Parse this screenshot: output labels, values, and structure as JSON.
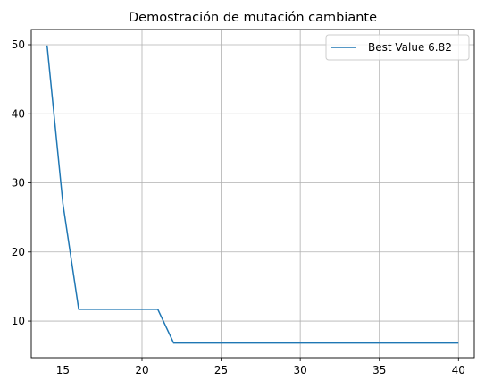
{
  "chart_data": {
    "type": "line",
    "title": "Demostración de mutación cambiante",
    "xlabel": "",
    "ylabel": "",
    "xlim": [
      13,
      41
    ],
    "ylim": [
      4.7,
      52.2
    ],
    "xticks": [
      15,
      20,
      25,
      30,
      35,
      40
    ],
    "yticks": [
      10,
      20,
      30,
      40,
      50
    ],
    "grid": true,
    "legend_position": "top-right",
    "series": [
      {
        "name": "Best Value 6.82",
        "color": "#1f77b4",
        "x": [
          14,
          15,
          16,
          17,
          18,
          19,
          20,
          21,
          22,
          23,
          24,
          25,
          26,
          27,
          28,
          29,
          30,
          31,
          32,
          33,
          34,
          35,
          36,
          37,
          38,
          39,
          40
        ],
        "y": [
          49.9,
          27.0,
          11.7,
          11.7,
          11.7,
          11.7,
          11.7,
          11.7,
          6.82,
          6.82,
          6.82,
          6.82,
          6.82,
          6.82,
          6.82,
          6.82,
          6.82,
          6.82,
          6.82,
          6.82,
          6.82,
          6.82,
          6.82,
          6.82,
          6.82,
          6.82,
          6.82
        ]
      }
    ]
  }
}
